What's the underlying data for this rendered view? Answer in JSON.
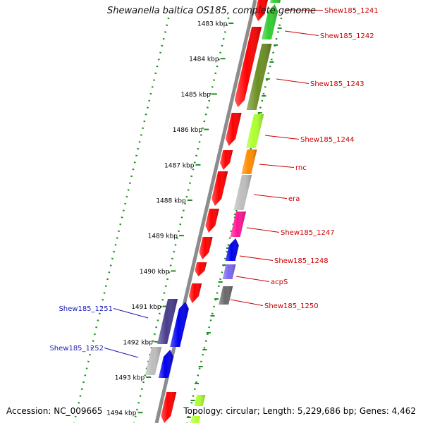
{
  "title": "Shewanella baltica OS185, complete genome",
  "accession": "Accession: NC_009665",
  "topology": "Topology: circular; Length: 5,229,686 bp; Genes: 4,462",
  "colors": {
    "backbone": "#8c8c8c",
    "ruler": "#1f8f1f",
    "right_label": "#cc0000",
    "left_label": "#1a1ab8"
  },
  "kbp_labels": [
    "1483 kbp",
    "1484 kbp",
    "1485 kbp",
    "1486 kbp",
    "1487 kbp",
    "1488 kbp",
    "1489 kbp",
    "1490 kbp",
    "1491 kbp",
    "1492 kbp",
    "1493 kbp",
    "1494 kbp"
  ],
  "genes_right": [
    {
      "label": "Shew185_1241",
      "color": "#33cc33"
    },
    {
      "label": "Shew185_1242",
      "color": "#33cc33"
    },
    {
      "label": "Shew185_1243",
      "color": "#6b8e23"
    },
    {
      "label": "Shew185_1244",
      "color": "#adff2f"
    },
    {
      "label": "rnc",
      "color": "#ff8c00"
    },
    {
      "label": "era",
      "color": "#bdbdbd"
    },
    {
      "label": "Shew185_1247",
      "color": "#ff1493"
    },
    {
      "label": "Shew185_1248",
      "color": "#0000ee"
    },
    {
      "label": "acpS",
      "color": "#7b68ee"
    },
    {
      "label": "Shew185_1250",
      "color": "#696969"
    }
  ],
  "genes_left": [
    {
      "label": "Shew185_1251",
      "color": "#483d8b"
    },
    {
      "label": "Shew185_1252",
      "color": "#bdbdbd"
    }
  ]
}
